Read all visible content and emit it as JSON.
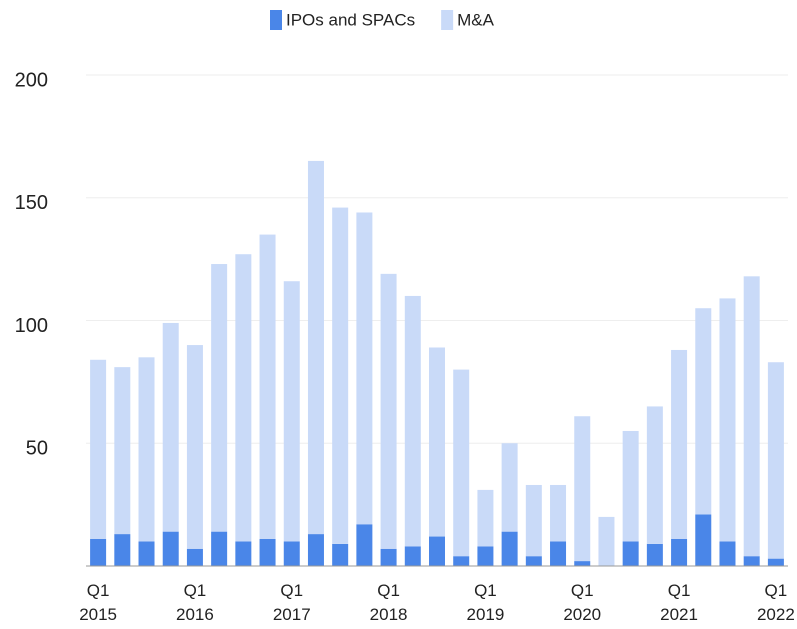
{
  "chart_data": {
    "type": "bar",
    "stacked": true,
    "categories": [
      "Q1 2015",
      null,
      null,
      null,
      "Q1 2016",
      null,
      null,
      null,
      "Q1 2017",
      null,
      null,
      null,
      "Q1 2018",
      null,
      null,
      null,
      "Q1 2019",
      null,
      null,
      null,
      "Q1 2020",
      null,
      null,
      null,
      "Q1 2021",
      null,
      null,
      null,
      "Q1 2022"
    ],
    "series": [
      {
        "name": "IPOs and SPACs",
        "color": "#4a86e8",
        "values": [
          11,
          13,
          10,
          14,
          7,
          14,
          10,
          11,
          10,
          13,
          9,
          17,
          7,
          8,
          12,
          4,
          8,
          14,
          4,
          10,
          2,
          0,
          10,
          9,
          11,
          21,
          10,
          4,
          3
        ]
      },
      {
        "name": "M&A",
        "color": "#c9daf8",
        "values": [
          73,
          68,
          75,
          85,
          83,
          109,
          117,
          124,
          106,
          152,
          137,
          127,
          112,
          102,
          77,
          76,
          23,
          36,
          29,
          23,
          59,
          20,
          45,
          56,
          77,
          84,
          99,
          114,
          80
        ]
      }
    ],
    "ylim": [
      0,
      200
    ],
    "yticks": [
      50,
      100,
      150,
      200
    ],
    "grid": true,
    "legend": "top"
  }
}
